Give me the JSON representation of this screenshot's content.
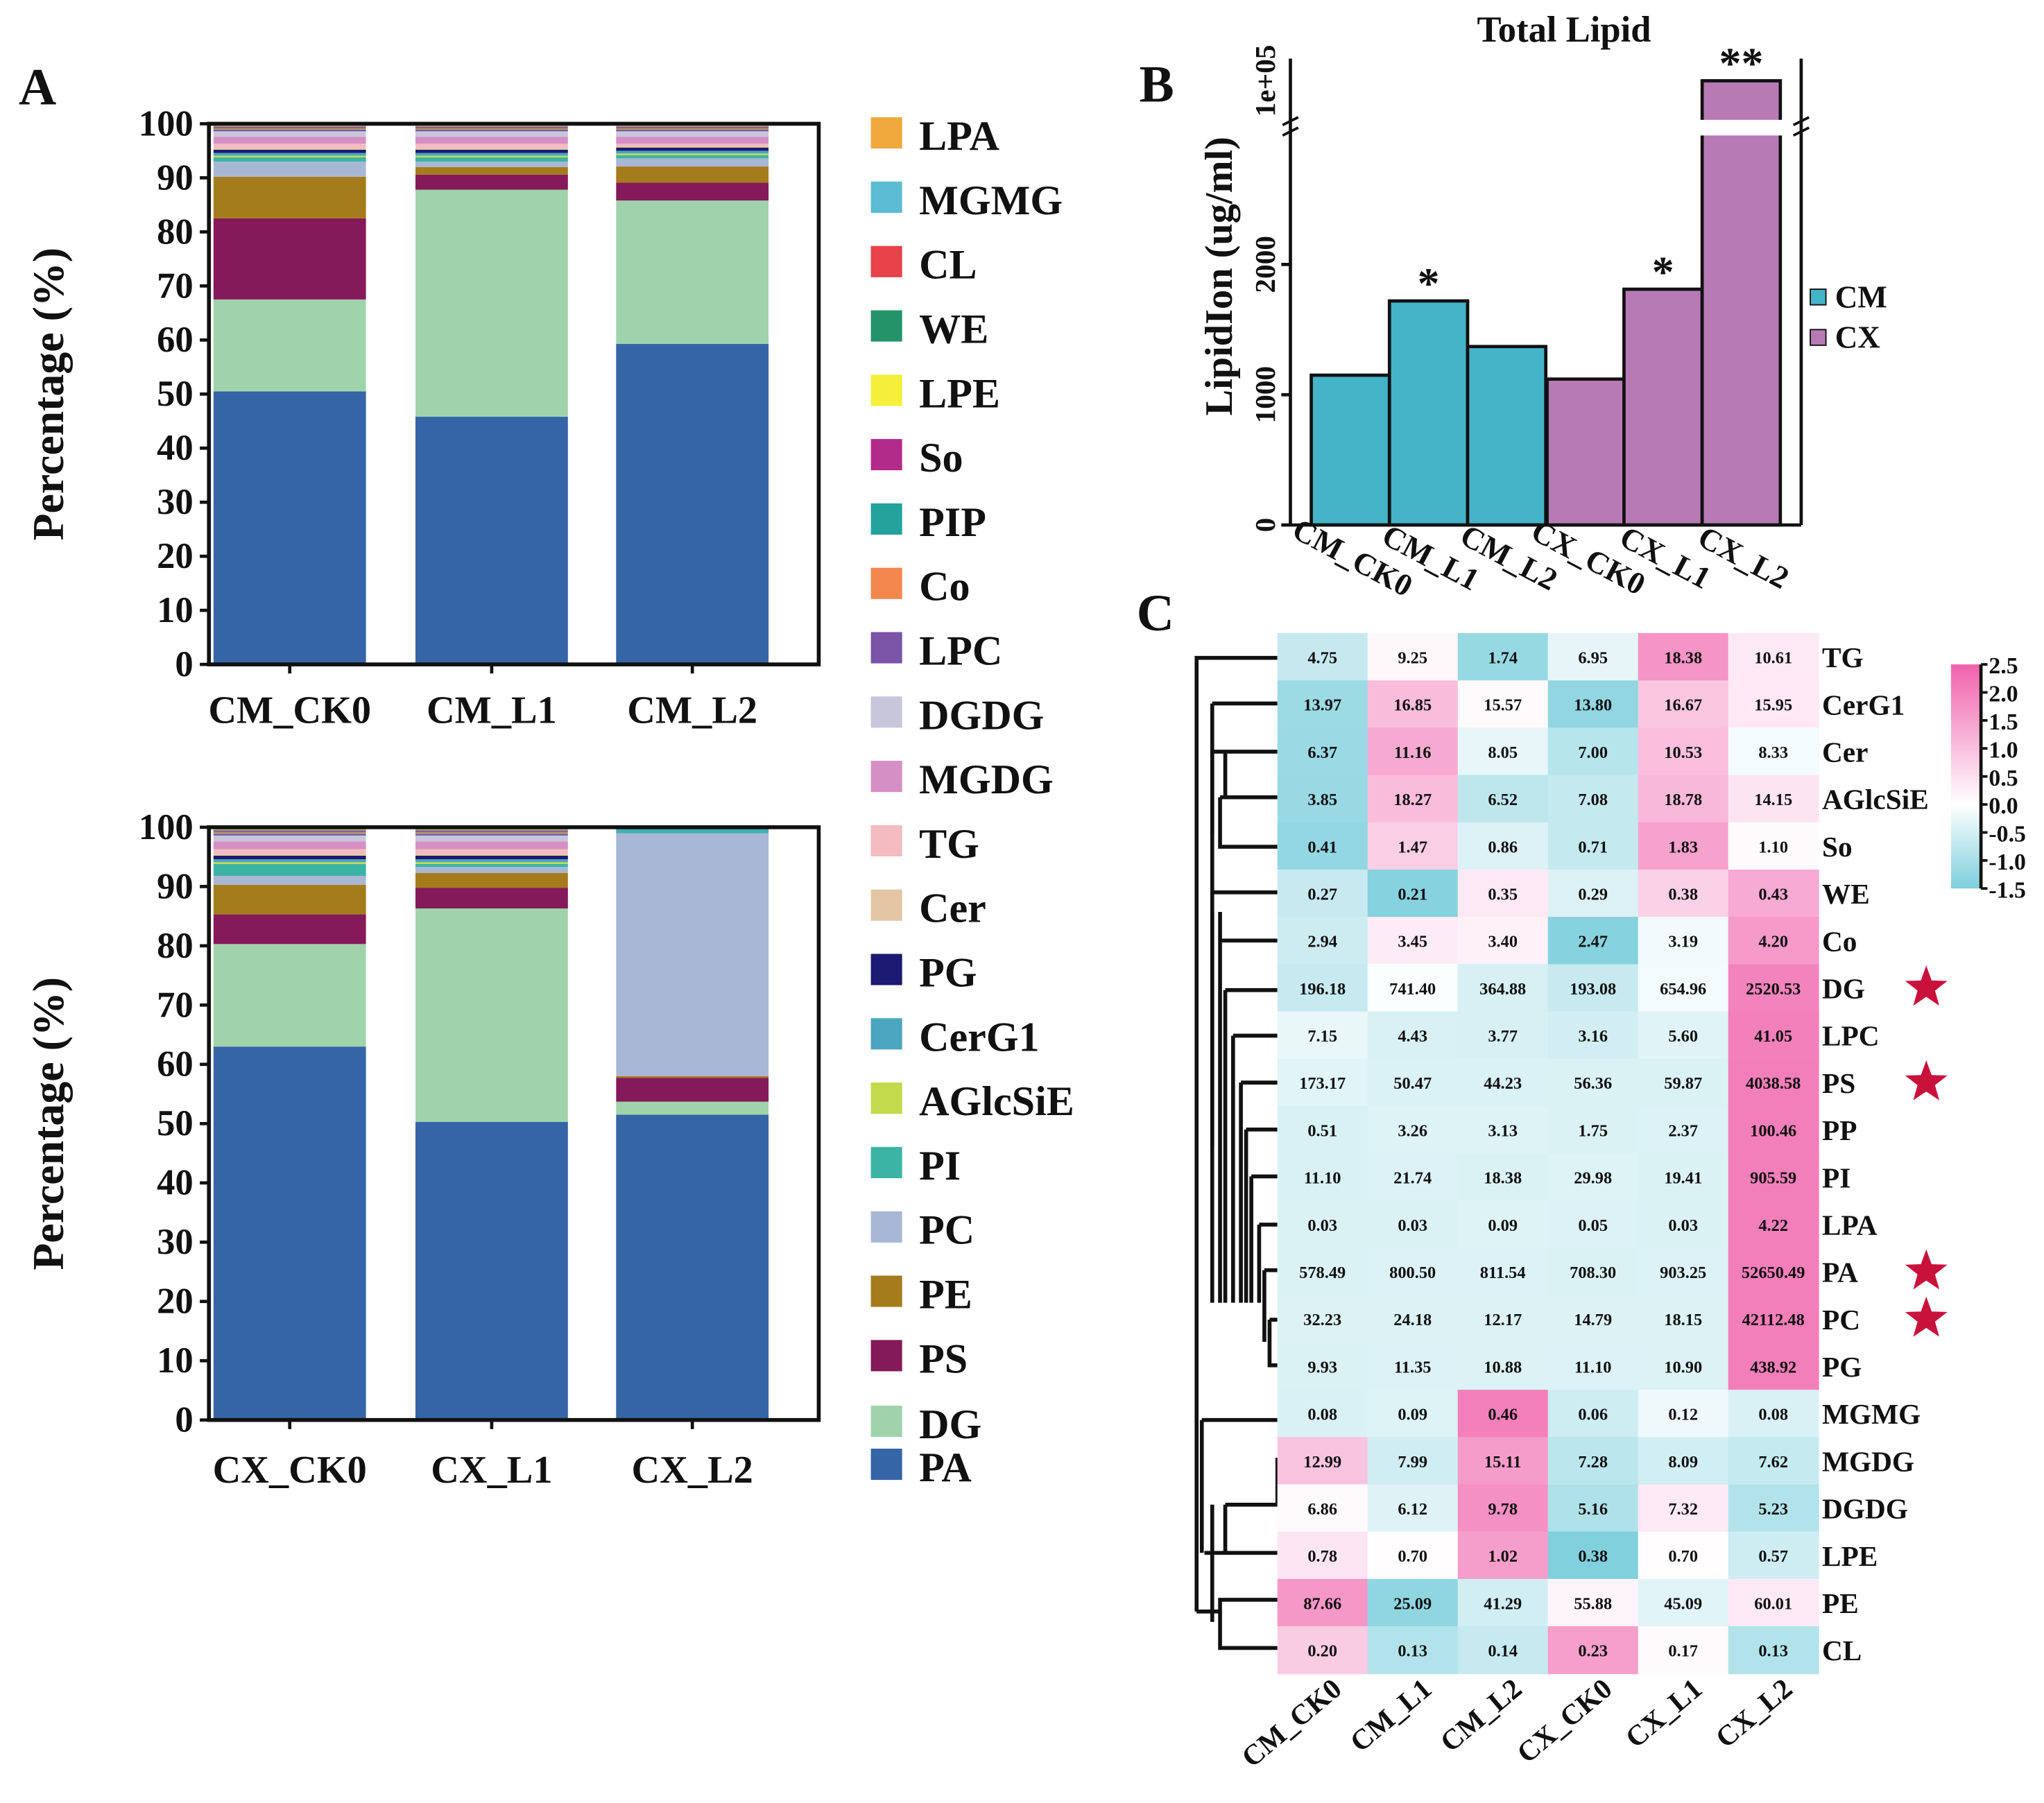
{
  "panel_labels": {
    "a": "A",
    "b": "B",
    "c": "C"
  },
  "chart_data": [
    {
      "type": "bar",
      "stacked": true,
      "panel": "A-top",
      "ylabel": "Percentage (%)",
      "ylim": [
        0,
        100
      ],
      "yticks": [
        "0",
        "10",
        "20",
        "30",
        "40",
        "50",
        "60",
        "70",
        "80",
        "90",
        "100"
      ],
      "categories": [
        "CM_CK0",
        "CM_L1",
        "CM_L2"
      ],
      "series_order": [
        "PA",
        "DG",
        "PS",
        "PE",
        "PC",
        "PI",
        "AGlcSiE",
        "CerG1",
        "PG",
        "Cer",
        "TG",
        "MGDG",
        "DGDG",
        "LPC",
        "Co",
        "PIP",
        "So",
        "LPE",
        "WE",
        "CL",
        "MGMG",
        "LPA"
      ],
      "values": [
        [
          50.5,
          17.0,
          15.0,
          7.7,
          2.8,
          0.8,
          0.3,
          0.5,
          0.6,
          0.3,
          0.8,
          1.3,
          1.0,
          0.3,
          0.2,
          0.2,
          0.2,
          0.1,
          0.1,
          0.1,
          0.1,
          0.1
        ],
        [
          45.8,
          42.0,
          2.8,
          1.4,
          1.0,
          0.8,
          0.3,
          0.5,
          0.6,
          0.3,
          0.8,
          1.3,
          1.0,
          0.3,
          0.2,
          0.2,
          0.2,
          0.1,
          0.1,
          0.1,
          0.1,
          0.1
        ],
        [
          59.3,
          26.5,
          3.3,
          3.0,
          1.5,
          0.6,
          0.3,
          0.5,
          0.6,
          0.3,
          0.4,
          1.3,
          1.0,
          0.3,
          0.2,
          0.2,
          0.2,
          0.1,
          0.1,
          0.1,
          0.1,
          0.1
        ]
      ]
    },
    {
      "type": "bar",
      "stacked": true,
      "panel": "A-bottom",
      "ylabel": "Percentage (%)",
      "ylim": [
        0,
        100
      ],
      "yticks": [
        "0",
        "10",
        "20",
        "30",
        "40",
        "50",
        "60",
        "70",
        "80",
        "90",
        "100"
      ],
      "categories": [
        "CX_CK0",
        "CX_L1",
        "CX_L2"
      ],
      "series_order": [
        "PA",
        "DG",
        "PS",
        "PE",
        "PC",
        "PI",
        "AGlcSiE",
        "CerG1",
        "PG",
        "Cer",
        "TG",
        "MGDG",
        "DGDG",
        "LPC",
        "Co",
        "PIP",
        "So",
        "LPE",
        "WE",
        "CL",
        "MGMG",
        "LPA"
      ],
      "values": [
        [
          63.0,
          17.3,
          5.0,
          5.0,
          1.5,
          2.0,
          0.3,
          0.5,
          0.6,
          0.3,
          0.8,
          1.3,
          1.0,
          0.3,
          0.2,
          0.2,
          0.2,
          0.1,
          0.1,
          0.1,
          0.1,
          0.1
        ],
        [
          50.3,
          36.0,
          3.5,
          2.5,
          1.0,
          0.5,
          0.3,
          0.5,
          0.6,
          0.3,
          0.8,
          1.3,
          1.0,
          0.3,
          0.2,
          0.2,
          0.2,
          0.1,
          0.1,
          0.1,
          0.1,
          0.1
        ],
        [
          51.5,
          2.2,
          4.0,
          0.3,
          41.0,
          0.4,
          0,
          0.3,
          0.1,
          0,
          0.1,
          0.1,
          0,
          0,
          0,
          0,
          0,
          0,
          0,
          0,
          0,
          0
        ]
      ]
    },
    {
      "type": "bar",
      "panel": "B",
      "title": "Total Lipid",
      "ylabel": "LipidIon (ug/ml)",
      "yticks": [
        "0",
        "1000",
        "2000"
      ],
      "ybreak_label": "1e+05",
      "categories": [
        "CM_CK0",
        "CM_L1",
        "CM_L2",
        "CX_CK0",
        "CX_L1",
        "CX_L2"
      ],
      "values": [
        1150,
        1720,
        1370,
        1120,
        1810,
        100000
      ],
      "groups": [
        "CM",
        "CM",
        "CM",
        "CX",
        "CX",
        "CX"
      ],
      "significance": [
        "",
        "*",
        "",
        "",
        "*",
        "**"
      ],
      "legend": [
        {
          "name": "CM",
          "color": "#45b3c8"
        },
        {
          "name": "CX",
          "color": "#b77ab5"
        }
      ]
    },
    {
      "type": "heatmap",
      "panel": "C",
      "columns": [
        "CM_CK0",
        "CM_L1",
        "CM_L2",
        "CX_CK0",
        "CX_L1",
        "CX_L2"
      ],
      "rows": [
        "TG",
        "CerG1",
        "Cer",
        "AGlcSiE",
        "So",
        "WE",
        "Co",
        "DG",
        "LPC",
        "PS",
        "PP",
        "PI",
        "LPA",
        "PA",
        "PC",
        "PG",
        "MGMG",
        "MGDG",
        "DGDG",
        "LPE",
        "PE",
        "CL"
      ],
      "starred_rows": [
        "DG",
        "PS",
        "PA",
        "PC"
      ],
      "values": [
        [
          "4.75",
          "9.25",
          "1.74",
          "6.95",
          "18.38",
          "10.61"
        ],
        [
          "13.97",
          "16.85",
          "15.57",
          "13.80",
          "16.67",
          "15.95"
        ],
        [
          "6.37",
          "11.16",
          "8.05",
          "7.00",
          "10.53",
          "8.33"
        ],
        [
          "3.85",
          "18.27",
          "6.52",
          "7.08",
          "18.78",
          "14.15"
        ],
        [
          "0.41",
          "1.47",
          "0.86",
          "0.71",
          "1.83",
          "1.10"
        ],
        [
          "0.27",
          "0.21",
          "0.35",
          "0.29",
          "0.38",
          "0.43"
        ],
        [
          "2.94",
          "3.45",
          "3.40",
          "2.47",
          "3.19",
          "4.20"
        ],
        [
          "196.18",
          "741.40",
          "364.88",
          "193.08",
          "654.96",
          "2520.53"
        ],
        [
          "7.15",
          "4.43",
          "3.77",
          "3.16",
          "5.60",
          "41.05"
        ],
        [
          "173.17",
          "50.47",
          "44.23",
          "56.36",
          "59.87",
          "4038.58"
        ],
        [
          "0.51",
          "3.26",
          "3.13",
          "1.75",
          "2.37",
          "100.46"
        ],
        [
          "11.10",
          "21.74",
          "18.38",
          "29.98",
          "19.41",
          "905.59"
        ],
        [
          "0.03",
          "0.03",
          "0.09",
          "0.05",
          "0.03",
          "4.22"
        ],
        [
          "578.49",
          "800.50",
          "811.54",
          "708.30",
          "903.25",
          "52650.49"
        ],
        [
          "32.23",
          "24.18",
          "12.17",
          "14.79",
          "18.15",
          "42112.48"
        ],
        [
          "9.93",
          "11.35",
          "10.88",
          "11.10",
          "10.90",
          "438.92"
        ],
        [
          "0.08",
          "0.09",
          "0.46",
          "0.06",
          "0.12",
          "0.08"
        ],
        [
          "12.99",
          "7.99",
          "15.11",
          "7.28",
          "8.09",
          "7.62"
        ],
        [
          "6.86",
          "6.12",
          "9.78",
          "5.16",
          "7.32",
          "5.23"
        ],
        [
          "0.78",
          "0.70",
          "1.02",
          "0.38",
          "0.70",
          "0.57"
        ],
        [
          "87.66",
          "25.09",
          "41.29",
          "55.88",
          "45.09",
          "60.01"
        ],
        [
          "0.20",
          "0.13",
          "0.14",
          "0.23",
          "0.17",
          "0.13"
        ]
      ],
      "colorbar": {
        "ticks": [
          "2.5",
          "2.0",
          "1.5",
          "1.0",
          "0.5",
          "0.0",
          "-0.5",
          "-1.0",
          "-1.5"
        ],
        "range": [
          -1.5,
          2.5
        ],
        "low_color": "#7dcfdc",
        "mid_color": "#ffffff",
        "high_color": "#f062ab"
      }
    }
  ],
  "legend": [
    {
      "name": "LPA",
      "color": "#f0a83c"
    },
    {
      "name": "MGMG",
      "color": "#5bbcd3"
    },
    {
      "name": "CL",
      "color": "#e8424a"
    },
    {
      "name": "WE",
      "color": "#23946a"
    },
    {
      "name": "LPE",
      "color": "#f4ef3a"
    },
    {
      "name": "So",
      "color": "#b22b8a"
    },
    {
      "name": "PIP",
      "color": "#23a29b"
    },
    {
      "name": "Co",
      "color": "#f3874e"
    },
    {
      "name": "LPC",
      "color": "#7a54a6"
    },
    {
      "name": "DGDG",
      "color": "#c7c6db"
    },
    {
      "name": "MGDG",
      "color": "#d68fc4"
    },
    {
      "name": "TG",
      "color": "#f2bcc0"
    },
    {
      "name": "Cer",
      "color": "#e3c6a4"
    },
    {
      "name": "PG",
      "color": "#1c1a73"
    },
    {
      "name": "CerG1",
      "color": "#4aa5bf"
    },
    {
      "name": "AGlcSiE",
      "color": "#c3da4a"
    },
    {
      "name": "PI",
      "color": "#3cb4a4"
    },
    {
      "name": "PC",
      "color": "#a9b7d6"
    },
    {
      "name": "PE",
      "color": "#a57c1c"
    },
    {
      "name": "PS",
      "color": "#841a5a"
    },
    {
      "name": "DG",
      "color": "#9fd3ab"
    },
    {
      "name": "PA",
      "color": "#3565a6"
    }
  ]
}
